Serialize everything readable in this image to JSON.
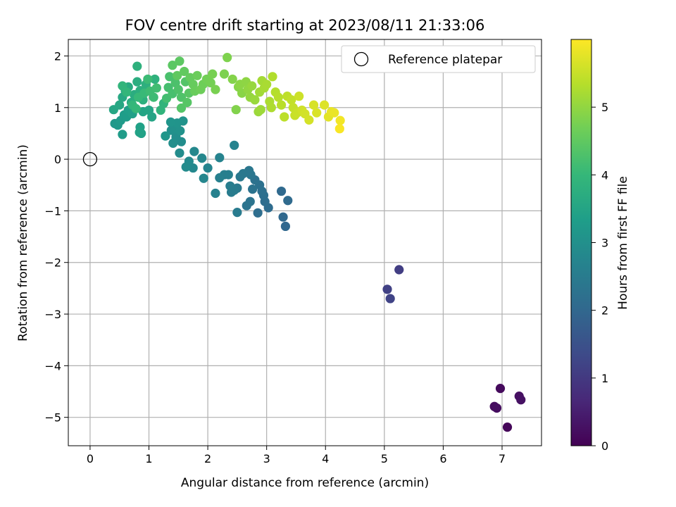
{
  "chart_data": {
    "type": "scatter",
    "title": "FOV centre drift starting at 2023/08/11 21:33:06",
    "xlabel": "Angular distance from reference (arcmin)",
    "ylabel": "Rotation from reference (arcmin)",
    "xlim": [
      -0.37,
      7.67
    ],
    "ylim": [
      -5.55,
      2.32
    ],
    "x_ticks": [
      0,
      1,
      2,
      3,
      4,
      5,
      6,
      7
    ],
    "y_ticks": [
      -5,
      -4,
      -3,
      -2,
      -1,
      0,
      1,
      2
    ],
    "x_tick_labels": [
      "0",
      "1",
      "2",
      "3",
      "4",
      "5",
      "6",
      "7"
    ],
    "y_tick_labels": [
      "−5",
      "−4",
      "−3",
      "−2",
      "−1",
      "0",
      "1",
      "2"
    ],
    "grid": true,
    "legend": {
      "position": "top-right",
      "entries": [
        "Reference platepar"
      ]
    },
    "reference_point": {
      "x": 0,
      "y": 0
    },
    "colorbar": {
      "label": "Hours from first FF file",
      "min": 0,
      "max": 6.0,
      "ticks": [
        0,
        1,
        2,
        3,
        4,
        5
      ],
      "tick_labels": [
        "0",
        "1",
        "2",
        "3",
        "4",
        "5"
      ],
      "colormap": "viridis",
      "colors": [
        "#440154",
        "#482878",
        "#3e4a89",
        "#31688e",
        "#26828e",
        "#1f9e89",
        "#35b779",
        "#6ece58",
        "#b5de2b",
        "#fde725"
      ]
    },
    "points": [
      [
        6.97,
        -4.44,
        0.15
      ],
      [
        6.87,
        -4.79,
        0.18
      ],
      [
        6.91,
        -4.82,
        0.2
      ],
      [
        7.09,
        -5.19,
        0.1
      ],
      [
        7.29,
        -4.59,
        0.25
      ],
      [
        7.32,
        -4.66,
        0.28
      ],
      [
        5.25,
        -2.14,
        1.1
      ],
      [
        5.05,
        -2.52,
        1.15
      ],
      [
        5.1,
        -2.7,
        1.2
      ],
      [
        3.32,
        -1.3,
        2.0
      ],
      [
        3.28,
        -1.12,
        2.02
      ],
      [
        3.25,
        -0.62,
        2.05
      ],
      [
        3.36,
        -0.8,
        2.08
      ],
      [
        3.03,
        -0.94,
        2.1
      ],
      [
        2.97,
        -0.82,
        2.12
      ],
      [
        2.85,
        -1.04,
        2.15
      ],
      [
        2.95,
        -0.7,
        2.18
      ],
      [
        2.92,
        -0.62,
        2.2
      ],
      [
        2.88,
        -0.5,
        2.22
      ],
      [
        2.8,
        -0.4,
        2.25
      ],
      [
        2.76,
        -0.58,
        2.28
      ],
      [
        2.72,
        -0.82,
        2.3
      ],
      [
        2.66,
        -0.9,
        2.32
      ],
      [
        2.73,
        -0.3,
        2.35
      ],
      [
        2.7,
        -0.22,
        2.38
      ],
      [
        2.6,
        -0.28,
        2.4
      ],
      [
        2.55,
        -0.34,
        2.42
      ],
      [
        2.5,
        -0.56,
        2.45
      ],
      [
        2.5,
        -1.03,
        2.48
      ],
      [
        2.45,
        -0.6,
        2.5
      ],
      [
        2.4,
        -0.64,
        2.52
      ],
      [
        2.38,
        -0.52,
        2.55
      ],
      [
        2.35,
        -0.3,
        2.58
      ],
      [
        2.28,
        -0.3,
        2.6
      ],
      [
        2.2,
        -0.36,
        2.62
      ],
      [
        2.13,
        -0.66,
        2.65
      ],
      [
        2.2,
        0.03,
        2.68
      ],
      [
        2.45,
        0.27,
        2.7
      ],
      [
        2.0,
        -0.17,
        2.72
      ],
      [
        1.93,
        -0.37,
        2.75
      ],
      [
        1.9,
        0.02,
        2.78
      ],
      [
        1.77,
        0.15,
        2.8
      ],
      [
        1.75,
        -0.17,
        2.82
      ],
      [
        1.68,
        -0.04,
        2.85
      ],
      [
        1.63,
        -0.15,
        2.88
      ],
      [
        1.52,
        0.12,
        2.9
      ],
      [
        1.55,
        0.34,
        2.92
      ],
      [
        1.46,
        0.43,
        2.95
      ],
      [
        1.41,
        0.31,
        2.97
      ],
      [
        1.38,
        0.56,
        3.0
      ],
      [
        1.45,
        0.58,
        3.02
      ],
      [
        1.53,
        0.55,
        3.05
      ],
      [
        1.58,
        0.74,
        3.08
      ],
      [
        1.48,
        0.7,
        3.1
      ],
      [
        1.37,
        0.72,
        3.12
      ],
      [
        1.28,
        0.45,
        3.15
      ],
      [
        0.42,
        0.69,
        3.2
      ],
      [
        0.47,
        0.66,
        3.22
      ],
      [
        0.52,
        0.75,
        3.25
      ],
      [
        0.55,
        0.48,
        3.28
      ],
      [
        0.58,
        0.86,
        3.3
      ],
      [
        0.62,
        0.82,
        3.32
      ],
      [
        0.65,
        0.95,
        3.35
      ],
      [
        0.72,
        0.88,
        3.38
      ],
      [
        0.85,
        0.62,
        3.4
      ],
      [
        0.87,
        0.5,
        3.42
      ],
      [
        0.84,
        0.52,
        3.45
      ],
      [
        0.9,
        0.92,
        3.48
      ],
      [
        1.05,
        0.82,
        3.5
      ],
      [
        1.0,
        0.95,
        3.52
      ],
      [
        0.4,
        0.96,
        3.55
      ],
      [
        0.5,
        1.05,
        3.58
      ],
      [
        0.55,
        1.2,
        3.6
      ],
      [
        0.6,
        1.32,
        3.62
      ],
      [
        0.65,
        1.4,
        3.65
      ],
      [
        0.7,
        1.1,
        3.68
      ],
      [
        0.75,
        1.25,
        3.7
      ],
      [
        0.8,
        1.5,
        3.72
      ],
      [
        0.85,
        1.33,
        3.75
      ],
      [
        0.95,
        1.45,
        3.78
      ],
      [
        0.9,
        1.15,
        3.8
      ],
      [
        0.8,
        1.8,
        3.82
      ],
      [
        1.1,
        1.55,
        3.85
      ],
      [
        1.2,
        0.95,
        3.88
      ],
      [
        1.25,
        1.08,
        3.9
      ],
      [
        0.55,
        1.42,
        3.92
      ],
      [
        0.62,
        1.3,
        3.95
      ],
      [
        0.72,
        1.05,
        3.97
      ],
      [
        0.78,
        0.98,
        4.0
      ],
      [
        0.82,
        1.2,
        4.02
      ],
      [
        0.92,
        1.28,
        4.05
      ],
      [
        0.98,
        1.55,
        4.08
      ],
      [
        1.08,
        1.2,
        4.1
      ],
      [
        1.02,
        1.32,
        4.12
      ],
      [
        1.13,
        1.38,
        4.15
      ],
      [
        1.3,
        1.18,
        4.17
      ],
      [
        1.33,
        1.39,
        4.2
      ],
      [
        1.4,
        1.27,
        4.22
      ],
      [
        1.35,
        1.6,
        4.25
      ],
      [
        1.45,
        1.48,
        4.27
      ],
      [
        1.5,
        1.35,
        4.3
      ],
      [
        1.55,
        1.2,
        4.32
      ],
      [
        1.62,
        1.5,
        4.35
      ],
      [
        1.55,
        0.99,
        4.37
      ],
      [
        1.65,
        1.1,
        4.4
      ],
      [
        1.68,
        1.28,
        4.42
      ],
      [
        1.4,
        1.82,
        4.45
      ],
      [
        1.52,
        1.9,
        4.47
      ],
      [
        1.48,
        1.62,
        4.5
      ],
      [
        1.6,
        1.7,
        4.52
      ],
      [
        1.7,
        1.58,
        4.55
      ],
      [
        1.75,
        1.45,
        4.57
      ],
      [
        1.78,
        1.32,
        4.6
      ],
      [
        1.82,
        1.62,
        4.62
      ],
      [
        1.88,
        1.35,
        4.65
      ],
      [
        1.92,
        1.45,
        4.67
      ],
      [
        1.98,
        1.55,
        4.7
      ],
      [
        2.05,
        1.48,
        4.72
      ],
      [
        2.08,
        1.65,
        4.75
      ],
      [
        2.13,
        1.35,
        4.77
      ],
      [
        2.28,
        1.65,
        4.8
      ],
      [
        2.33,
        1.97,
        4.82
      ],
      [
        2.48,
        0.96,
        4.85
      ],
      [
        2.42,
        1.55,
        4.87
      ],
      [
        2.52,
        1.4,
        4.9
      ],
      [
        2.58,
        1.28,
        4.92
      ],
      [
        2.55,
        1.45,
        4.95
      ],
      [
        2.65,
        1.5,
        4.97
      ],
      [
        2.68,
        1.35,
        5.0
      ],
      [
        2.72,
        1.2,
        5.02
      ],
      [
        2.75,
        1.42,
        5.05
      ],
      [
        2.8,
        1.15,
        5.07
      ],
      [
        2.86,
        0.92,
        5.1
      ],
      [
        2.9,
        0.96,
        5.12
      ],
      [
        2.88,
        1.3,
        5.15
      ],
      [
        2.92,
        1.52,
        5.17
      ],
      [
        2.96,
        1.38,
        5.2
      ],
      [
        3.0,
        1.45,
        5.22
      ],
      [
        3.05,
        1.12,
        5.25
      ],
      [
        3.08,
        1.0,
        5.27
      ],
      [
        3.1,
        1.6,
        5.3
      ],
      [
        3.15,
        1.3,
        5.32
      ],
      [
        3.2,
        1.2,
        5.35
      ],
      [
        3.25,
        1.05,
        5.37
      ],
      [
        3.3,
        0.82,
        5.4
      ],
      [
        3.35,
        1.22,
        5.42
      ],
      [
        3.42,
        1.15,
        5.45
      ],
      [
        3.45,
        1.0,
        5.47
      ],
      [
        3.48,
        0.85,
        5.5
      ],
      [
        3.52,
        0.9,
        5.52
      ],
      [
        3.55,
        1.22,
        5.55
      ],
      [
        3.6,
        0.95,
        5.57
      ],
      [
        3.65,
        0.88,
        5.6
      ],
      [
        3.72,
        0.76,
        5.62
      ],
      [
        3.8,
        1.05,
        5.65
      ],
      [
        3.85,
        0.9,
        5.67
      ],
      [
        3.98,
        1.05,
        5.7
      ],
      [
        4.05,
        0.82,
        5.75
      ],
      [
        4.1,
        0.92,
        5.8
      ],
      [
        4.15,
        0.9,
        5.82
      ],
      [
        4.25,
        0.75,
        5.9
      ],
      [
        4.24,
        0.59,
        5.95
      ]
    ]
  }
}
